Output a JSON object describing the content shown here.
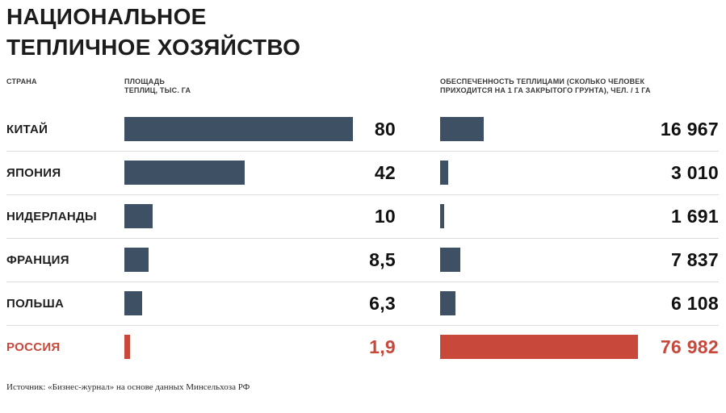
{
  "title": {
    "line1": "НАЦИОНАЛЬНОЕ",
    "line2": "ТЕПЛИЧНОЕ ХОЗЯЙСТВО"
  },
  "columns": {
    "country": "СТРАНА",
    "area": "ПЛОЩАДЬ\nТЕПЛИЦ, ТЫС. ГА",
    "provision": "ОБЕСПЕЧЕННОСТЬ ТЕПЛИЦАМИ (СКОЛЬКО ЧЕЛОВЕК ПРИХОДИТСЯ НА 1 ГА ЗАКРЫТОГО ГРУНТА), ЧЕЛ. / 1 ГА"
  },
  "colors": {
    "bar": "#3e5063",
    "highlight": "#c8493c",
    "separator": "#dcdcdc"
  },
  "source": "Источник: «Бизнес-журнал» на основе данных Минсельхоза РФ",
  "chart_data": {
    "type": "bar",
    "orientation": "horizontal",
    "categories": [
      "КИТАЙ",
      "ЯПОНИЯ",
      "НИДЕРЛАНДЫ",
      "ФРАНЦИЯ",
      "ПОЛЬША",
      "РОССИЯ"
    ],
    "highlight_category": "РОССИЯ",
    "series": [
      {
        "name": "ПЛОЩАДЬ ТЕПЛИЦ, ТЫС. ГА",
        "max": 80,
        "values": [
          80,
          42,
          10,
          8.5,
          6.3,
          1.9
        ],
        "labels": [
          "80",
          "42",
          "10",
          "8,5",
          "6,3",
          "1,9"
        ]
      },
      {
        "name": "ОБЕСПЕЧЕННОСТЬ ТЕПЛИЦАМИ, ЧЕЛ. / 1 ГА",
        "max": 76982,
        "values": [
          16967,
          3010,
          1691,
          7837,
          6108,
          76982
        ],
        "labels": [
          "16 967",
          "3 010",
          "1 691",
          "7 837",
          "6 108",
          "76 982"
        ]
      }
    ],
    "grid": false,
    "legend": false
  }
}
